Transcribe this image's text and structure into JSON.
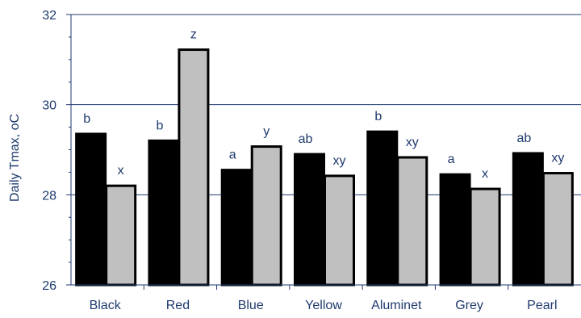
{
  "chart_data": {
    "type": "bar",
    "ylabel": "Daily Tmax, oC",
    "ylim": [
      26,
      32
    ],
    "yticks": [
      "26",
      "28",
      "30",
      "32"
    ],
    "grid": "horizontal",
    "categories": [
      "Black",
      "Red",
      "Blue",
      "Yellow",
      "Aluminet",
      "Grey",
      "Pearl"
    ],
    "series": [
      {
        "color": "#000000",
        "values": [
          29.35,
          29.2,
          28.55,
          28.9,
          29.4,
          28.45,
          28.92
        ],
        "labels": [
          "b",
          "b",
          "a",
          "ab",
          "b",
          "a",
          "ab"
        ]
      },
      {
        "color": "#c0c0c0",
        "values": [
          28.2,
          31.22,
          29.07,
          28.42,
          28.83,
          28.13,
          28.48
        ],
        "labels": [
          "x",
          "z",
          "y",
          "xy",
          "xy",
          "x",
          "xy"
        ]
      }
    ]
  }
}
